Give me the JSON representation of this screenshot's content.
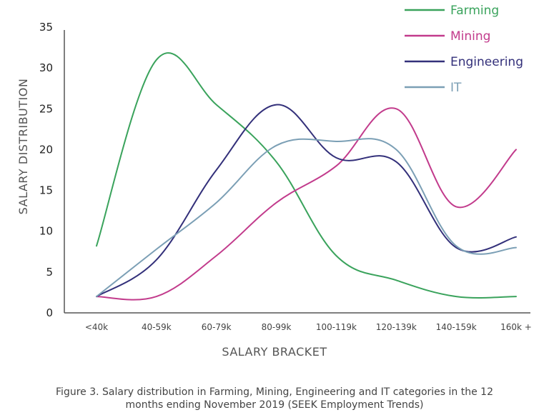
{
  "chart_data": {
    "type": "line",
    "xlabel": "SALARY BRACKET",
    "ylabel": "SALARY DISTRIBUTION",
    "ylim": [
      0,
      35
    ],
    "yticks": [
      0,
      5,
      10,
      15,
      20,
      25,
      30,
      35
    ],
    "categories": [
      "<40k",
      "40-59k",
      "60-79k",
      "80-99k",
      "100-119k",
      "120-139k",
      "140-159k",
      "160k +"
    ],
    "legend_position": "top-right",
    "grid": false,
    "series": [
      {
        "name": "Farming",
        "color": "#3aa35c",
        "values": [
          8.2,
          31.0,
          25.5,
          18.5,
          7.0,
          4.0,
          2.0,
          2.0
        ]
      },
      {
        "name": "Mining",
        "color": "#c23b8c",
        "values": [
          2.0,
          2.0,
          7.0,
          13.5,
          18.0,
          25.0,
          13.0,
          20.0
        ]
      },
      {
        "name": "Engineering",
        "color": "#33307a",
        "values": [
          2.0,
          6.5,
          17.5,
          25.5,
          19.0,
          18.5,
          8.0,
          9.3
        ]
      },
      {
        "name": "IT",
        "color": "#7b9fb5",
        "values": [
          2.0,
          7.8,
          13.5,
          20.5,
          21.0,
          20.0,
          8.2,
          8.0
        ]
      }
    ]
  },
  "caption": {
    "line1": "Figure 3. Salary distribution in Farming, Mining, Engineering and IT categories in the 12",
    "line2": "months ending November 2019 (SEEK Employment Trends)"
  }
}
